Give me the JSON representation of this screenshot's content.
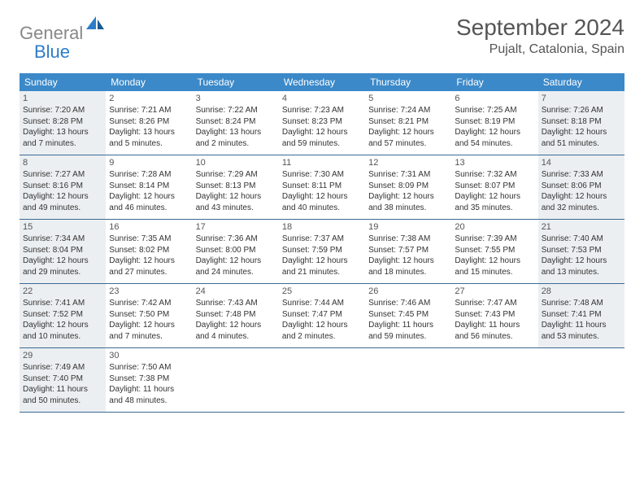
{
  "logo": {
    "text_gray": "General",
    "text_blue": "Blue"
  },
  "title": "September 2024",
  "location": "Pujalt, Catalonia, Spain",
  "colors": {
    "header_bg": "#3b89c9",
    "divider": "#3b6a95",
    "shaded_bg": "#eceff1",
    "logo_gray": "#888888",
    "logo_blue": "#2d7dc8"
  },
  "weekdays": [
    "Sunday",
    "Monday",
    "Tuesday",
    "Wednesday",
    "Thursday",
    "Friday",
    "Saturday"
  ],
  "weeks": [
    [
      {
        "n": "1",
        "shaded": true,
        "sr": "Sunrise: 7:20 AM",
        "ss": "Sunset: 8:28 PM",
        "dl1": "Daylight: 13 hours",
        "dl2": "and 7 minutes."
      },
      {
        "n": "2",
        "shaded": false,
        "sr": "Sunrise: 7:21 AM",
        "ss": "Sunset: 8:26 PM",
        "dl1": "Daylight: 13 hours",
        "dl2": "and 5 minutes."
      },
      {
        "n": "3",
        "shaded": false,
        "sr": "Sunrise: 7:22 AM",
        "ss": "Sunset: 8:24 PM",
        "dl1": "Daylight: 13 hours",
        "dl2": "and 2 minutes."
      },
      {
        "n": "4",
        "shaded": false,
        "sr": "Sunrise: 7:23 AM",
        "ss": "Sunset: 8:23 PM",
        "dl1": "Daylight: 12 hours",
        "dl2": "and 59 minutes."
      },
      {
        "n": "5",
        "shaded": false,
        "sr": "Sunrise: 7:24 AM",
        "ss": "Sunset: 8:21 PM",
        "dl1": "Daylight: 12 hours",
        "dl2": "and 57 minutes."
      },
      {
        "n": "6",
        "shaded": false,
        "sr": "Sunrise: 7:25 AM",
        "ss": "Sunset: 8:19 PM",
        "dl1": "Daylight: 12 hours",
        "dl2": "and 54 minutes."
      },
      {
        "n": "7",
        "shaded": true,
        "sr": "Sunrise: 7:26 AM",
        "ss": "Sunset: 8:18 PM",
        "dl1": "Daylight: 12 hours",
        "dl2": "and 51 minutes."
      }
    ],
    [
      {
        "n": "8",
        "shaded": true,
        "sr": "Sunrise: 7:27 AM",
        "ss": "Sunset: 8:16 PM",
        "dl1": "Daylight: 12 hours",
        "dl2": "and 49 minutes."
      },
      {
        "n": "9",
        "shaded": false,
        "sr": "Sunrise: 7:28 AM",
        "ss": "Sunset: 8:14 PM",
        "dl1": "Daylight: 12 hours",
        "dl2": "and 46 minutes."
      },
      {
        "n": "10",
        "shaded": false,
        "sr": "Sunrise: 7:29 AM",
        "ss": "Sunset: 8:13 PM",
        "dl1": "Daylight: 12 hours",
        "dl2": "and 43 minutes."
      },
      {
        "n": "11",
        "shaded": false,
        "sr": "Sunrise: 7:30 AM",
        "ss": "Sunset: 8:11 PM",
        "dl1": "Daylight: 12 hours",
        "dl2": "and 40 minutes."
      },
      {
        "n": "12",
        "shaded": false,
        "sr": "Sunrise: 7:31 AM",
        "ss": "Sunset: 8:09 PM",
        "dl1": "Daylight: 12 hours",
        "dl2": "and 38 minutes."
      },
      {
        "n": "13",
        "shaded": false,
        "sr": "Sunrise: 7:32 AM",
        "ss": "Sunset: 8:07 PM",
        "dl1": "Daylight: 12 hours",
        "dl2": "and 35 minutes."
      },
      {
        "n": "14",
        "shaded": true,
        "sr": "Sunrise: 7:33 AM",
        "ss": "Sunset: 8:06 PM",
        "dl1": "Daylight: 12 hours",
        "dl2": "and 32 minutes."
      }
    ],
    [
      {
        "n": "15",
        "shaded": true,
        "sr": "Sunrise: 7:34 AM",
        "ss": "Sunset: 8:04 PM",
        "dl1": "Daylight: 12 hours",
        "dl2": "and 29 minutes."
      },
      {
        "n": "16",
        "shaded": false,
        "sr": "Sunrise: 7:35 AM",
        "ss": "Sunset: 8:02 PM",
        "dl1": "Daylight: 12 hours",
        "dl2": "and 27 minutes."
      },
      {
        "n": "17",
        "shaded": false,
        "sr": "Sunrise: 7:36 AM",
        "ss": "Sunset: 8:00 PM",
        "dl1": "Daylight: 12 hours",
        "dl2": "and 24 minutes."
      },
      {
        "n": "18",
        "shaded": false,
        "sr": "Sunrise: 7:37 AM",
        "ss": "Sunset: 7:59 PM",
        "dl1": "Daylight: 12 hours",
        "dl2": "and 21 minutes."
      },
      {
        "n": "19",
        "shaded": false,
        "sr": "Sunrise: 7:38 AM",
        "ss": "Sunset: 7:57 PM",
        "dl1": "Daylight: 12 hours",
        "dl2": "and 18 minutes."
      },
      {
        "n": "20",
        "shaded": false,
        "sr": "Sunrise: 7:39 AM",
        "ss": "Sunset: 7:55 PM",
        "dl1": "Daylight: 12 hours",
        "dl2": "and 15 minutes."
      },
      {
        "n": "21",
        "shaded": true,
        "sr": "Sunrise: 7:40 AM",
        "ss": "Sunset: 7:53 PM",
        "dl1": "Daylight: 12 hours",
        "dl2": "and 13 minutes."
      }
    ],
    [
      {
        "n": "22",
        "shaded": true,
        "sr": "Sunrise: 7:41 AM",
        "ss": "Sunset: 7:52 PM",
        "dl1": "Daylight: 12 hours",
        "dl2": "and 10 minutes."
      },
      {
        "n": "23",
        "shaded": false,
        "sr": "Sunrise: 7:42 AM",
        "ss": "Sunset: 7:50 PM",
        "dl1": "Daylight: 12 hours",
        "dl2": "and 7 minutes."
      },
      {
        "n": "24",
        "shaded": false,
        "sr": "Sunrise: 7:43 AM",
        "ss": "Sunset: 7:48 PM",
        "dl1": "Daylight: 12 hours",
        "dl2": "and 4 minutes."
      },
      {
        "n": "25",
        "shaded": false,
        "sr": "Sunrise: 7:44 AM",
        "ss": "Sunset: 7:47 PM",
        "dl1": "Daylight: 12 hours",
        "dl2": "and 2 minutes."
      },
      {
        "n": "26",
        "shaded": false,
        "sr": "Sunrise: 7:46 AM",
        "ss": "Sunset: 7:45 PM",
        "dl1": "Daylight: 11 hours",
        "dl2": "and 59 minutes."
      },
      {
        "n": "27",
        "shaded": false,
        "sr": "Sunrise: 7:47 AM",
        "ss": "Sunset: 7:43 PM",
        "dl1": "Daylight: 11 hours",
        "dl2": "and 56 minutes."
      },
      {
        "n": "28",
        "shaded": true,
        "sr": "Sunrise: 7:48 AM",
        "ss": "Sunset: 7:41 PM",
        "dl1": "Daylight: 11 hours",
        "dl2": "and 53 minutes."
      }
    ],
    [
      {
        "n": "29",
        "shaded": true,
        "sr": "Sunrise: 7:49 AM",
        "ss": "Sunset: 7:40 PM",
        "dl1": "Daylight: 11 hours",
        "dl2": "and 50 minutes."
      },
      {
        "n": "30",
        "shaded": false,
        "sr": "Sunrise: 7:50 AM",
        "ss": "Sunset: 7:38 PM",
        "dl1": "Daylight: 11 hours",
        "dl2": "and 48 minutes."
      },
      {
        "empty": true
      },
      {
        "empty": true
      },
      {
        "empty": true
      },
      {
        "empty": true
      },
      {
        "empty": true
      }
    ]
  ]
}
